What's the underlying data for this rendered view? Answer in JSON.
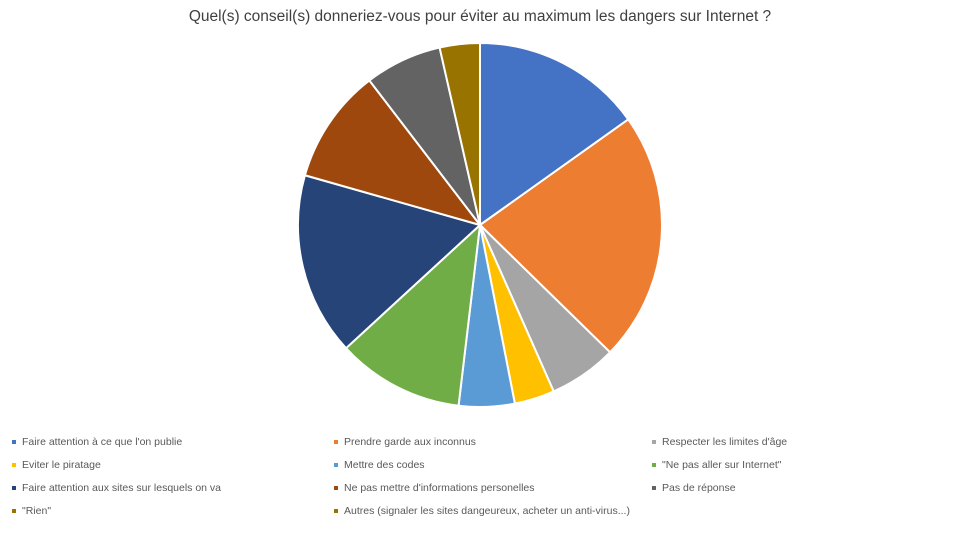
{
  "chart_data": {
    "type": "pie",
    "title": "Quel(s) conseil(s) donneriez-vous pour éviter au maximum les dangers sur Internet ?",
    "legend_position": "bottom",
    "slices": [
      {
        "label": "Faire attention à ce que l'on publie",
        "value": 15.3,
        "color": "#4472C4"
      },
      {
        "label": "Prendre garde aux inconnus",
        "value": 22.4,
        "color": "#ED7D31"
      },
      {
        "label": "Respecter les limites d'âge",
        "value": 6.1,
        "color": "#A5A5A5"
      },
      {
        "label": "Eviter le piratage",
        "value": 3.6,
        "color": "#FFC000"
      },
      {
        "label": "Mettre des codes",
        "value": 5.0,
        "color": "#5B9BD5"
      },
      {
        "label": "\"Ne pas aller sur Internet\"",
        "value": 11.4,
        "color": "#70AD47"
      },
      {
        "label": "Faire attention aux sites sur lesquels on va",
        "value": 16.4,
        "color": "#264478"
      },
      {
        "label": "Ne pas mettre d'informations personelles",
        "value": 10.3,
        "color": "#9E480E"
      },
      {
        "label": "Pas de réponse",
        "value": 6.9,
        "color": "#636363"
      },
      {
        "label": "\"Rien\"",
        "value": 0,
        "color": "#997300"
      },
      {
        "label": "Autres (signaler les sites dangeureux, acheter un anti-virus...)",
        "value": 3.6,
        "color": "#997300"
      }
    ]
  }
}
